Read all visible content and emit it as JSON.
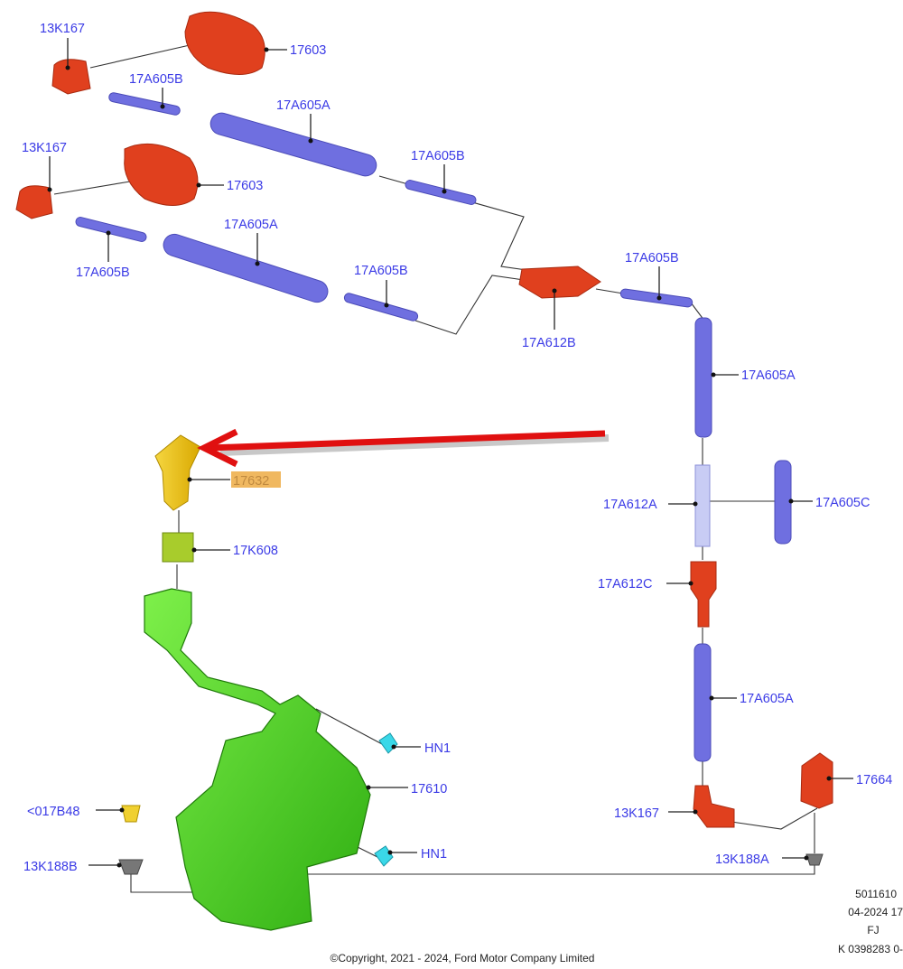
{
  "diagram": {
    "labels": [
      "13K167",
      "17603",
      "17A605B",
      "17A605A",
      "17A605B",
      "13K167",
      "17603",
      "17A605A",
      "17A605B",
      "17A605B",
      "17A605B",
      "17A612B",
      "17A605A",
      "17632",
      "17K608",
      "17A612A",
      "17A605C",
      "17A612C",
      "17A605A",
      "HN1",
      "17610",
      "<017B48",
      "17664",
      "13K167",
      "HN1",
      "13K188B",
      "13K188A"
    ],
    "highlighted_label": "17632",
    "highlight_color": "#f0b860",
    "arrow_color": "#e01010",
    "label_color": "#3b3be6",
    "ref_lines": [
      "5011610",
      "04-2024 17",
      "FJ",
      "K 0398283 0-"
    ],
    "copyright": "©Copyright, 2021 - 2024, Ford Motor Company Limited"
  }
}
